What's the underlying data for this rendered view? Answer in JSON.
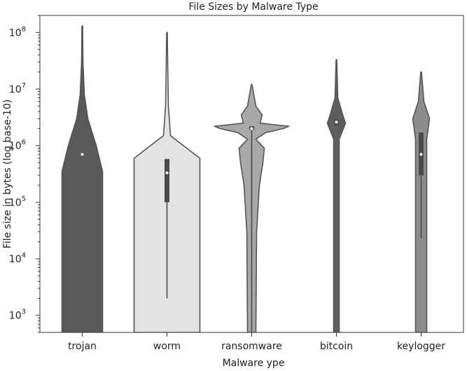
{
  "chart_data": {
    "type": "violin",
    "title": "File Sizes by Malware Type",
    "xlabel": "Malware ype",
    "ylabel": "File size in bytes (log base-10)",
    "y_scale": "log10",
    "ylim": [
      500,
      200000000
    ],
    "y_ticks": [
      {
        "value": 1000,
        "base": "10",
        "exp": "3"
      },
      {
        "value": 10000,
        "base": "10",
        "exp": "4"
      },
      {
        "value": 100000,
        "base": "10",
        "exp": "5"
      },
      {
        "value": 1000000,
        "base": "10",
        "exp": "6"
      },
      {
        "value": 10000000,
        "base": "10",
        "exp": "7"
      },
      {
        "value": 100000000,
        "base": "10",
        "exp": "8"
      }
    ],
    "categories": [
      "trojan",
      "worm",
      "ransomware",
      "bitcoin",
      "keylogger"
    ],
    "series": [
      {
        "category": "trojan",
        "color": "#595959",
        "max": 130000000,
        "median": 700000,
        "q1": 700000,
        "q3": 700000,
        "density_profile": [
          [
            200,
            29
          ],
          [
            350000,
            29
          ],
          [
            1000000,
            20
          ],
          [
            3000000,
            8
          ],
          [
            8000000,
            3
          ],
          [
            30000000,
            1
          ],
          [
            130000000,
            0.5
          ]
        ]
      },
      {
        "category": "worm",
        "color": "#e3e3e3",
        "min": 2000,
        "max": 100000000,
        "median": 330000,
        "q1": 100000,
        "q3": 580000,
        "density_profile": [
          [
            200,
            47
          ],
          [
            600000,
            47
          ],
          [
            1500000,
            5
          ],
          [
            5000000,
            2
          ],
          [
            30000000,
            1
          ],
          [
            100000000,
            0.5
          ]
        ]
      },
      {
        "category": "ransomware",
        "color": "#a8a8a8",
        "min": 500,
        "max": 12000000,
        "median": 2000000,
        "q1": 1900000,
        "q3": 2200000,
        "density_profile": [
          [
            200,
            6
          ],
          [
            30000,
            7
          ],
          [
            200000,
            11
          ],
          [
            500000,
            16
          ],
          [
            900000,
            18
          ],
          [
            1300000,
            6
          ],
          [
            1700000,
            20
          ],
          [
            2000000,
            45
          ],
          [
            2200000,
            53
          ],
          [
            2500000,
            12
          ],
          [
            3500000,
            15
          ],
          [
            5000000,
            6
          ],
          [
            12000000,
            0.5
          ]
        ]
      },
      {
        "category": "bitcoin",
        "color": "#5e5e5e",
        "max": 33000000,
        "median": 2600000,
        "q1": 2300000,
        "q3": 2900000,
        "density_profile": [
          [
            200,
            4
          ],
          [
            1300000,
            4
          ],
          [
            2500000,
            13
          ],
          [
            3500000,
            9
          ],
          [
            7000000,
            2
          ],
          [
            33000000,
            0.5
          ]
        ]
      },
      {
        "category": "keylogger",
        "color": "#8c8c8c",
        "min": 23000,
        "max": 20000000,
        "median": 700000,
        "q1": 300000,
        "q3": 1700000,
        "density_profile": [
          [
            200,
            8
          ],
          [
            1300000,
            8
          ],
          [
            3000000,
            12
          ],
          [
            6000000,
            4
          ],
          [
            20000000,
            0.5
          ]
        ]
      }
    ]
  }
}
